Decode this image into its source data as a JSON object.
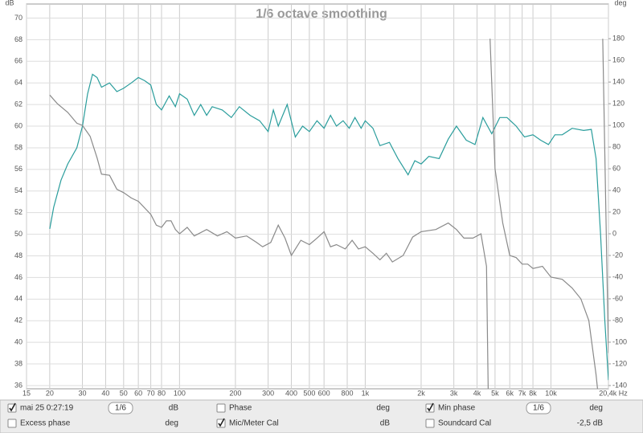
{
  "chart_data": {
    "type": "line",
    "title": "1/6 octave smoothing",
    "y_label": "dB",
    "y2_label": "deg",
    "log_x": true,
    "grid": true,
    "xlim": [
      15,
      20400
    ],
    "xticks": [
      15,
      20,
      30,
      40,
      50,
      60,
      70,
      80,
      100,
      200,
      300,
      400,
      500,
      600,
      800,
      {
        "value": 1000,
        "label": "1k"
      },
      {
        "value": 2000,
        "label": "2k"
      },
      {
        "value": 3000,
        "label": "3k"
      },
      {
        "value": 4000,
        "label": "4k"
      },
      {
        "value": 5000,
        "label": "5k"
      },
      {
        "value": 6000,
        "label": "6k"
      },
      {
        "value": 7000,
        "label": "7k"
      },
      {
        "value": 8000,
        "label": "8k"
      },
      {
        "value": 10000,
        "label": "10k"
      },
      {
        "value": 20400,
        "label": "20,4k Hz"
      }
    ],
    "ylim": [
      35.7,
      71.3
    ],
    "yticks": [
      36,
      38,
      40,
      42,
      44,
      46,
      48,
      50,
      52,
      54,
      56,
      58,
      60,
      62,
      64,
      66,
      68,
      70
    ],
    "y2lim": [
      -143,
      212
    ],
    "y2ticks": [
      -140,
      -120,
      -100,
      -80,
      -60,
      -40,
      -20,
      0,
      20,
      40,
      60,
      80,
      100,
      120,
      140,
      160,
      180
    ],
    "series": [
      {
        "name": "mai 25 0:27:19",
        "color": "#2a9d9c",
        "x": [
          20,
          21,
          23,
          25,
          28,
          30,
          32,
          34,
          36,
          38,
          42,
          46,
          50,
          55,
          60,
          65,
          70,
          75,
          80,
          88,
          95,
          100,
          110,
          120,
          130,
          140,
          150,
          170,
          190,
          210,
          240,
          270,
          300,
          320,
          340,
          380,
          420,
          460,
          500,
          550,
          600,
          650,
          700,
          760,
          820,
          880,
          950,
          1000,
          1100,
          1200,
          1350,
          1500,
          1700,
          1850,
          2000,
          2200,
          2500,
          2800,
          3100,
          3500,
          3900,
          4300,
          4800,
          5300,
          5800,
          6500,
          7200,
          8000,
          8800,
          9700,
          10500,
          11500,
          13000,
          15000,
          16500,
          17500,
          18500,
          19500,
          20400
        ],
        "values": [
          50.5,
          52.5,
          55,
          56.5,
          58,
          60,
          63,
          64.8,
          64.5,
          63.6,
          64,
          63.2,
          63.5,
          64,
          64.5,
          64.2,
          63.8,
          62,
          61.5,
          62.8,
          61.8,
          63,
          62.5,
          61,
          62,
          61,
          61.8,
          61.5,
          60.8,
          61.8,
          61,
          60.5,
          59.5,
          61.5,
          60,
          62,
          59,
          60,
          59.5,
          60.5,
          59.8,
          61,
          60,
          60.5,
          59.8,
          60.8,
          59.8,
          60.5,
          59.8,
          58.2,
          58.5,
          57,
          55.5,
          56.8,
          56.5,
          57.2,
          57,
          58.8,
          60,
          58.7,
          58.3,
          60.8,
          59.3,
          60.8,
          60.8,
          60,
          59,
          59.2,
          58.7,
          58.3,
          59.2,
          59.2,
          59.8,
          59.6,
          59.7,
          57,
          50,
          42,
          36.5
        ]
      },
      {
        "name": "Min phase",
        "color": "#8a8a8a",
        "axis": "y2",
        "x": [
          20,
          22,
          25,
          28,
          30,
          33,
          36,
          38,
          42,
          46,
          50,
          55,
          60,
          70,
          75,
          80,
          85,
          90,
          95,
          100,
          110,
          120,
          140,
          160,
          180,
          200,
          230,
          260,
          280,
          310,
          340,
          370,
          400,
          450,
          500,
          550,
          600,
          650,
          700,
          780,
          850,
          920,
          1000,
          1100,
          1200,
          1300,
          1400,
          1600,
          1800,
          2000,
          2400,
          2800,
          3100,
          3400,
          3800,
          4200,
          4500,
          4600,
          4650,
          4700,
          5000,
          5500,
          6000,
          6500,
          7000,
          7500,
          8000,
          9000,
          10000,
          11500,
          13000,
          14500,
          16000,
          17500,
          18000,
          18500,
          19000,
          20400
        ],
        "values": [
          128,
          120,
          112,
          102,
          100,
          90,
          70,
          55,
          54,
          41,
          38,
          33,
          30,
          18,
          8,
          6,
          12,
          12,
          4,
          0,
          6,
          -2,
          4,
          -2,
          2,
          -4,
          -2,
          -8,
          -12,
          -8,
          8,
          -4,
          -20,
          -6,
          -10,
          -4,
          2,
          -12,
          -10,
          -14,
          -6,
          -14,
          -12,
          -18,
          -24,
          -18,
          -26,
          -20,
          -3,
          2,
          4,
          10,
          4,
          -4,
          -4,
          0,
          -30,
          -150,
          null,
          180,
          60,
          10,
          -20,
          -22,
          -28,
          -28,
          -32,
          -30,
          -40,
          -42,
          -50,
          -60,
          -80,
          -130,
          -150,
          null,
          180,
          -110
        ]
      }
    ]
  },
  "controls": [
    {
      "label": "mai 25 0:27:19",
      "checked": true,
      "smoothing": "1/6",
      "unit": "dB"
    },
    {
      "label": "Phase",
      "checked": false,
      "unit": "deg"
    },
    {
      "label": "Min phase",
      "checked": true,
      "smoothing": "1/6",
      "unit": "deg"
    },
    {
      "label": "Excess phase",
      "checked": false,
      "unit": "deg"
    },
    {
      "label": "Mic/Meter Cal",
      "checked": true,
      "unit": "dB"
    },
    {
      "label": "Soundcard Cal",
      "checked": false,
      "unit": "-2,5 dB"
    }
  ]
}
